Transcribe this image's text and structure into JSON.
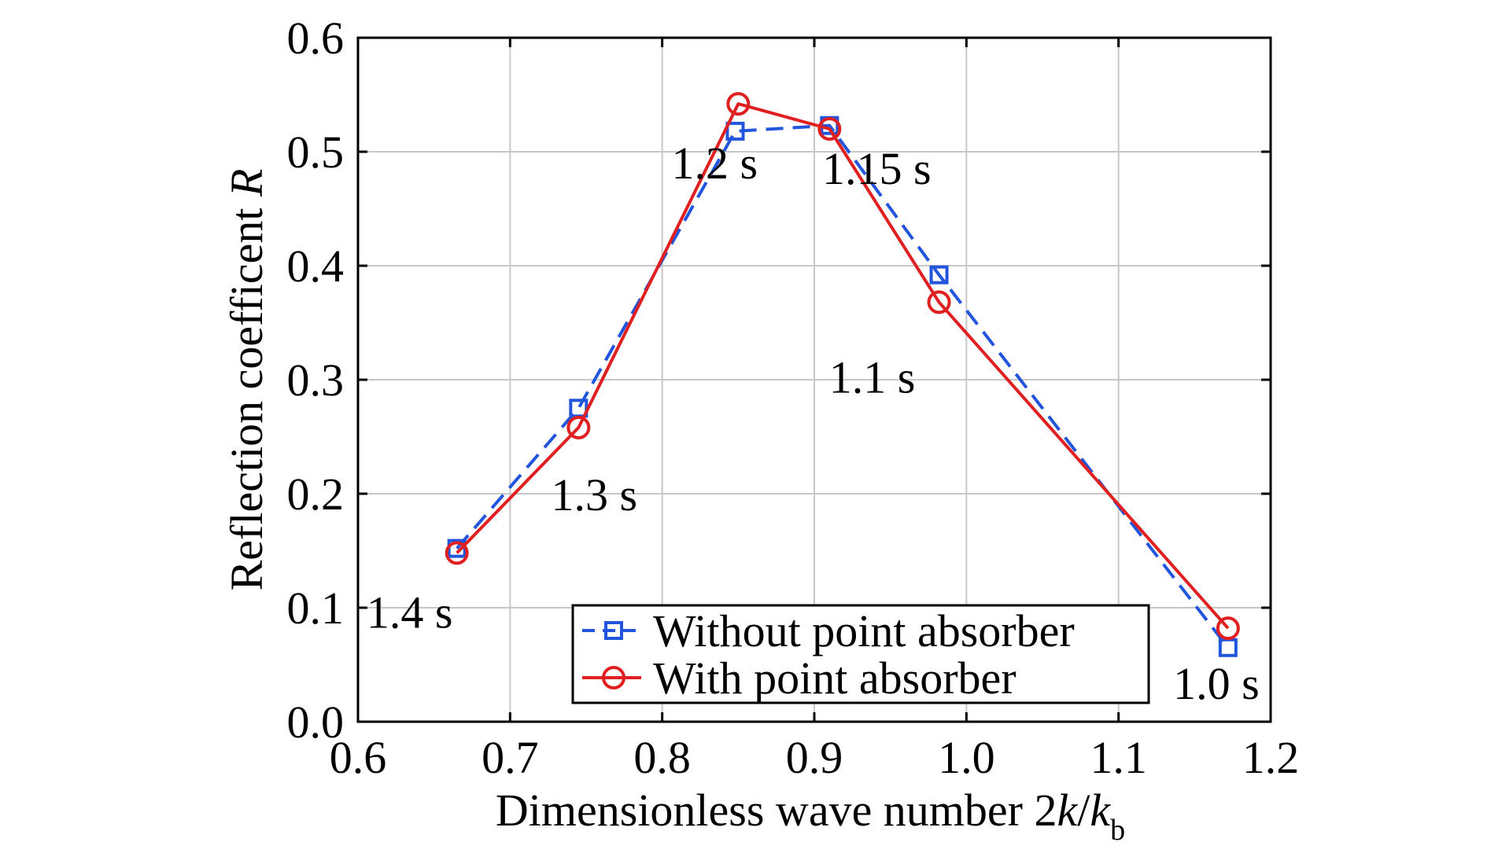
{
  "chart_data": {
    "type": "line",
    "xlabel": "Dimensionless wave number 2k/kb",
    "xlabel_parts": {
      "prefix": "Dimensionless wave number 2",
      "k1": "k",
      "slash": "/",
      "k2": "k",
      "sub": "b"
    },
    "ylabel": "Reflection coefficent R",
    "ylabel_parts": {
      "prefix": "Reflection coefficent ",
      "var": "R"
    },
    "xlim": [
      0.6,
      1.2
    ],
    "ylim": [
      0.0,
      0.6
    ],
    "xticks": [
      0.6,
      0.7,
      0.8,
      0.9,
      1.0,
      1.1,
      1.2
    ],
    "xtick_labels": [
      "0.6",
      "0.7",
      "0.8",
      "0.9",
      "1.0",
      "1.1",
      "1.2"
    ],
    "yticks": [
      0.0,
      0.1,
      0.2,
      0.3,
      0.4,
      0.5,
      0.6
    ],
    "ytick_labels": [
      "0.0",
      "0.1",
      "0.2",
      "0.3",
      "0.4",
      "0.5",
      "0.6"
    ],
    "grid": true,
    "legend_position": "bottom-right",
    "series": [
      {
        "name": "Without point absorber",
        "color": "#2255dd",
        "line_style": "dashed",
        "marker": "square",
        "x": [
          0.665,
          0.745,
          0.848,
          0.91,
          0.982,
          1.172
        ],
        "y": [
          0.152,
          0.275,
          0.518,
          0.523,
          0.392,
          0.065
        ]
      },
      {
        "name": "With point absorber",
        "color": "#e02020",
        "line_style": "solid",
        "marker": "circle",
        "x": [
          0.665,
          0.745,
          0.85,
          0.91,
          0.982,
          1.172
        ],
        "y": [
          0.148,
          0.258,
          0.542,
          0.52,
          0.368,
          0.082
        ]
      }
    ],
    "annotations": [
      {
        "text": "1.4 s",
        "x": 0.665,
        "y": 0.148
      },
      {
        "text": "1.3 s",
        "x": 0.745,
        "y": 0.258
      },
      {
        "text": "1.2 s",
        "x": 0.85,
        "y": 0.542
      },
      {
        "text": "1.15 s",
        "x": 0.91,
        "y": 0.52
      },
      {
        "text": "1.1 s",
        "x": 0.982,
        "y": 0.368
      },
      {
        "text": "1.0 s",
        "x": 1.172,
        "y": 0.082
      }
    ]
  }
}
